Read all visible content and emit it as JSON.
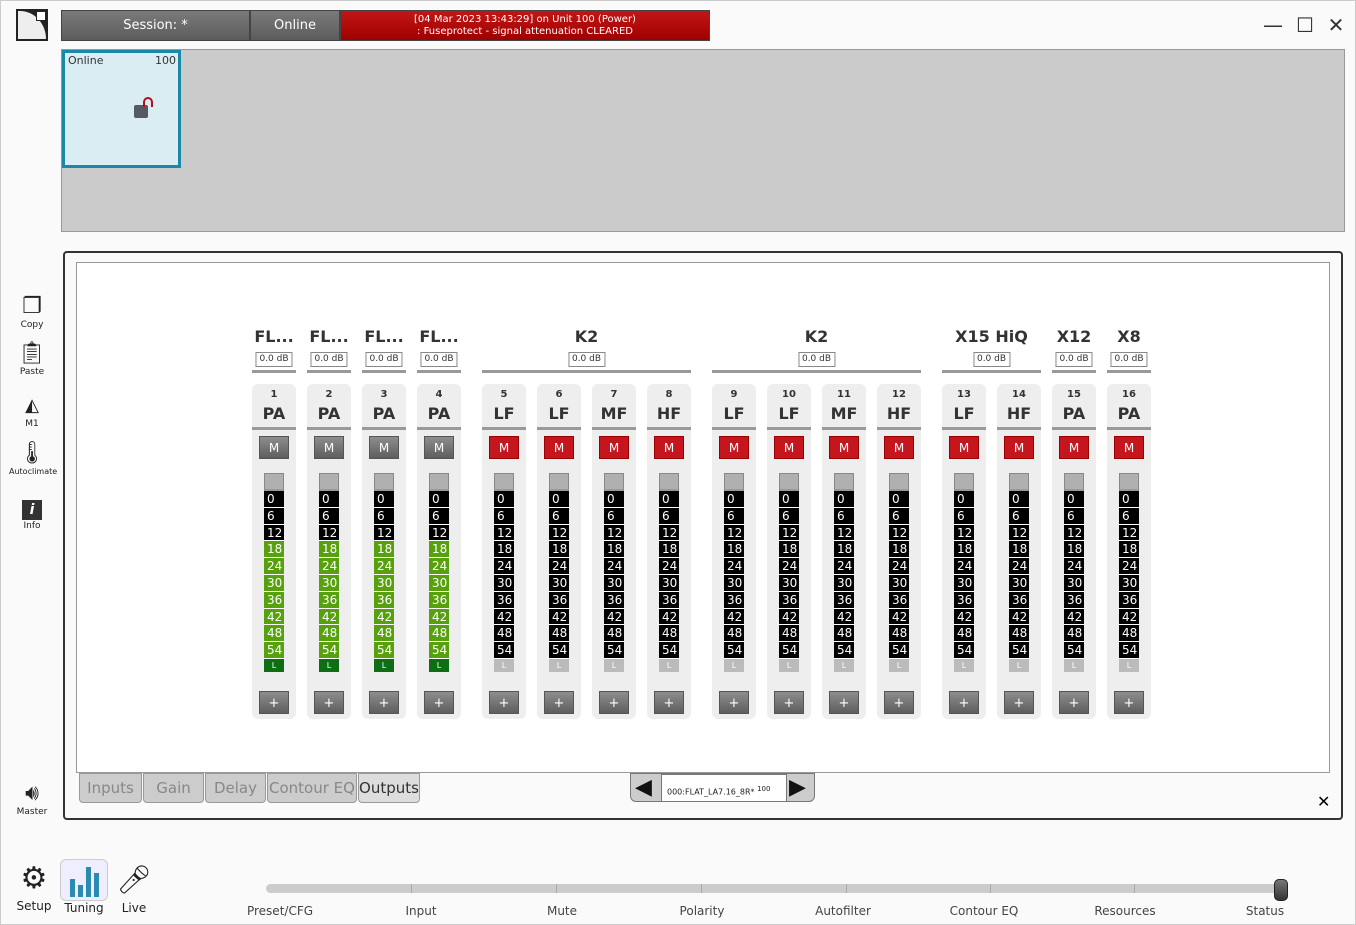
{
  "header": {
    "session": "Session: *",
    "status": "Online",
    "alert_line1": "[04 Mar 2023 13:43:29]  on Unit 100 (Power)",
    "alert_line2": ": Fuseprotect - signal attenuation CLEARED",
    "alert_color": "#b00000"
  },
  "window": {
    "minimize": "—",
    "maximize": "☐",
    "close": "✕"
  },
  "unit_tile": {
    "status": "Online",
    "id": "100",
    "lock_icon": "unlocked-padlock"
  },
  "sidebar": [
    {
      "label": "Copy",
      "icon": "copy"
    },
    {
      "label": "Paste",
      "icon": "paste"
    },
    {
      "label": "M1",
      "icon": "m1"
    },
    {
      "label": "Autoclimate",
      "icon": "thermometer"
    },
    {
      "label": "Info",
      "icon": "info"
    }
  ],
  "master": {
    "label": "Master",
    "icon": "speaker"
  },
  "groups": [
    {
      "name": "FL...",
      "gain": "0.0 dB",
      "channels": [
        1
      ]
    },
    {
      "name": "FL...",
      "gain": "0.0 dB",
      "channels": [
        2
      ]
    },
    {
      "name": "FL...",
      "gain": "0.0 dB",
      "channels": [
        3
      ]
    },
    {
      "name": "FL...",
      "gain": "0.0 dB",
      "channels": [
        4
      ]
    },
    {
      "name": "K2",
      "gain": "0.0 dB",
      "channels": [
        5,
        6,
        7,
        8
      ]
    },
    {
      "name": "K2",
      "gain": "0.0 dB",
      "channels": [
        9,
        10,
        11,
        12
      ]
    },
    {
      "name": "X15 HiQ",
      "gain": "0.0 dB",
      "channels": [
        13,
        14
      ]
    },
    {
      "name": "X12",
      "gain": "0.0 dB",
      "channels": [
        15
      ]
    },
    {
      "name": "X8",
      "gain": "0.0 dB",
      "channels": [
        16
      ]
    }
  ],
  "meter_scale": [
    "0",
    "6",
    "12",
    "18",
    "24",
    "30",
    "36",
    "42",
    "48",
    "54"
  ],
  "meter_limit_label": "L",
  "mute_label": "M",
  "plus_label": "+",
  "channels": [
    {
      "num": "1",
      "name": "PA",
      "muted": false,
      "level_from": "18"
    },
    {
      "num": "2",
      "name": "PA",
      "muted": false,
      "level_from": "18"
    },
    {
      "num": "3",
      "name": "PA",
      "muted": false,
      "level_from": "18"
    },
    {
      "num": "4",
      "name": "PA",
      "muted": false,
      "level_from": "18"
    },
    {
      "num": "5",
      "name": "LF",
      "muted": true,
      "level_from": null
    },
    {
      "num": "6",
      "name": "LF",
      "muted": true,
      "level_from": null
    },
    {
      "num": "7",
      "name": "MF",
      "muted": true,
      "level_from": null
    },
    {
      "num": "8",
      "name": "HF",
      "muted": true,
      "level_from": null
    },
    {
      "num": "9",
      "name": "LF",
      "muted": true,
      "level_from": null
    },
    {
      "num": "10",
      "name": "LF",
      "muted": true,
      "level_from": null
    },
    {
      "num": "11",
      "name": "MF",
      "muted": true,
      "level_from": null
    },
    {
      "num": "12",
      "name": "HF",
      "muted": true,
      "level_from": null
    },
    {
      "num": "13",
      "name": "LF",
      "muted": true,
      "level_from": null
    },
    {
      "num": "14",
      "name": "HF",
      "muted": true,
      "level_from": null
    },
    {
      "num": "15",
      "name": "PA",
      "muted": true,
      "level_from": null
    },
    {
      "num": "16",
      "name": "PA",
      "muted": true,
      "level_from": null
    }
  ],
  "tabs": [
    {
      "label": "Inputs"
    },
    {
      "label": "Gain"
    },
    {
      "label": "Delay"
    },
    {
      "label": "Contour EQ"
    },
    {
      "label": "Outputs",
      "active": true
    }
  ],
  "preset": {
    "name": "000:FLAT_LA7.16_8R*",
    "unit": "100"
  },
  "panel_close": "✕",
  "bottom_nav": [
    {
      "label": "Setup",
      "icon": "gears"
    },
    {
      "label": "Tuning",
      "icon": "bar-chart",
      "active": true
    },
    {
      "label": "Live",
      "icon": "microphone"
    }
  ],
  "status_steps": [
    "Preset/CFG",
    "Input",
    "Mute",
    "Polarity",
    "Autofilter",
    "Contour EQ",
    "Resources",
    "Status"
  ],
  "status_progress": 1.0
}
